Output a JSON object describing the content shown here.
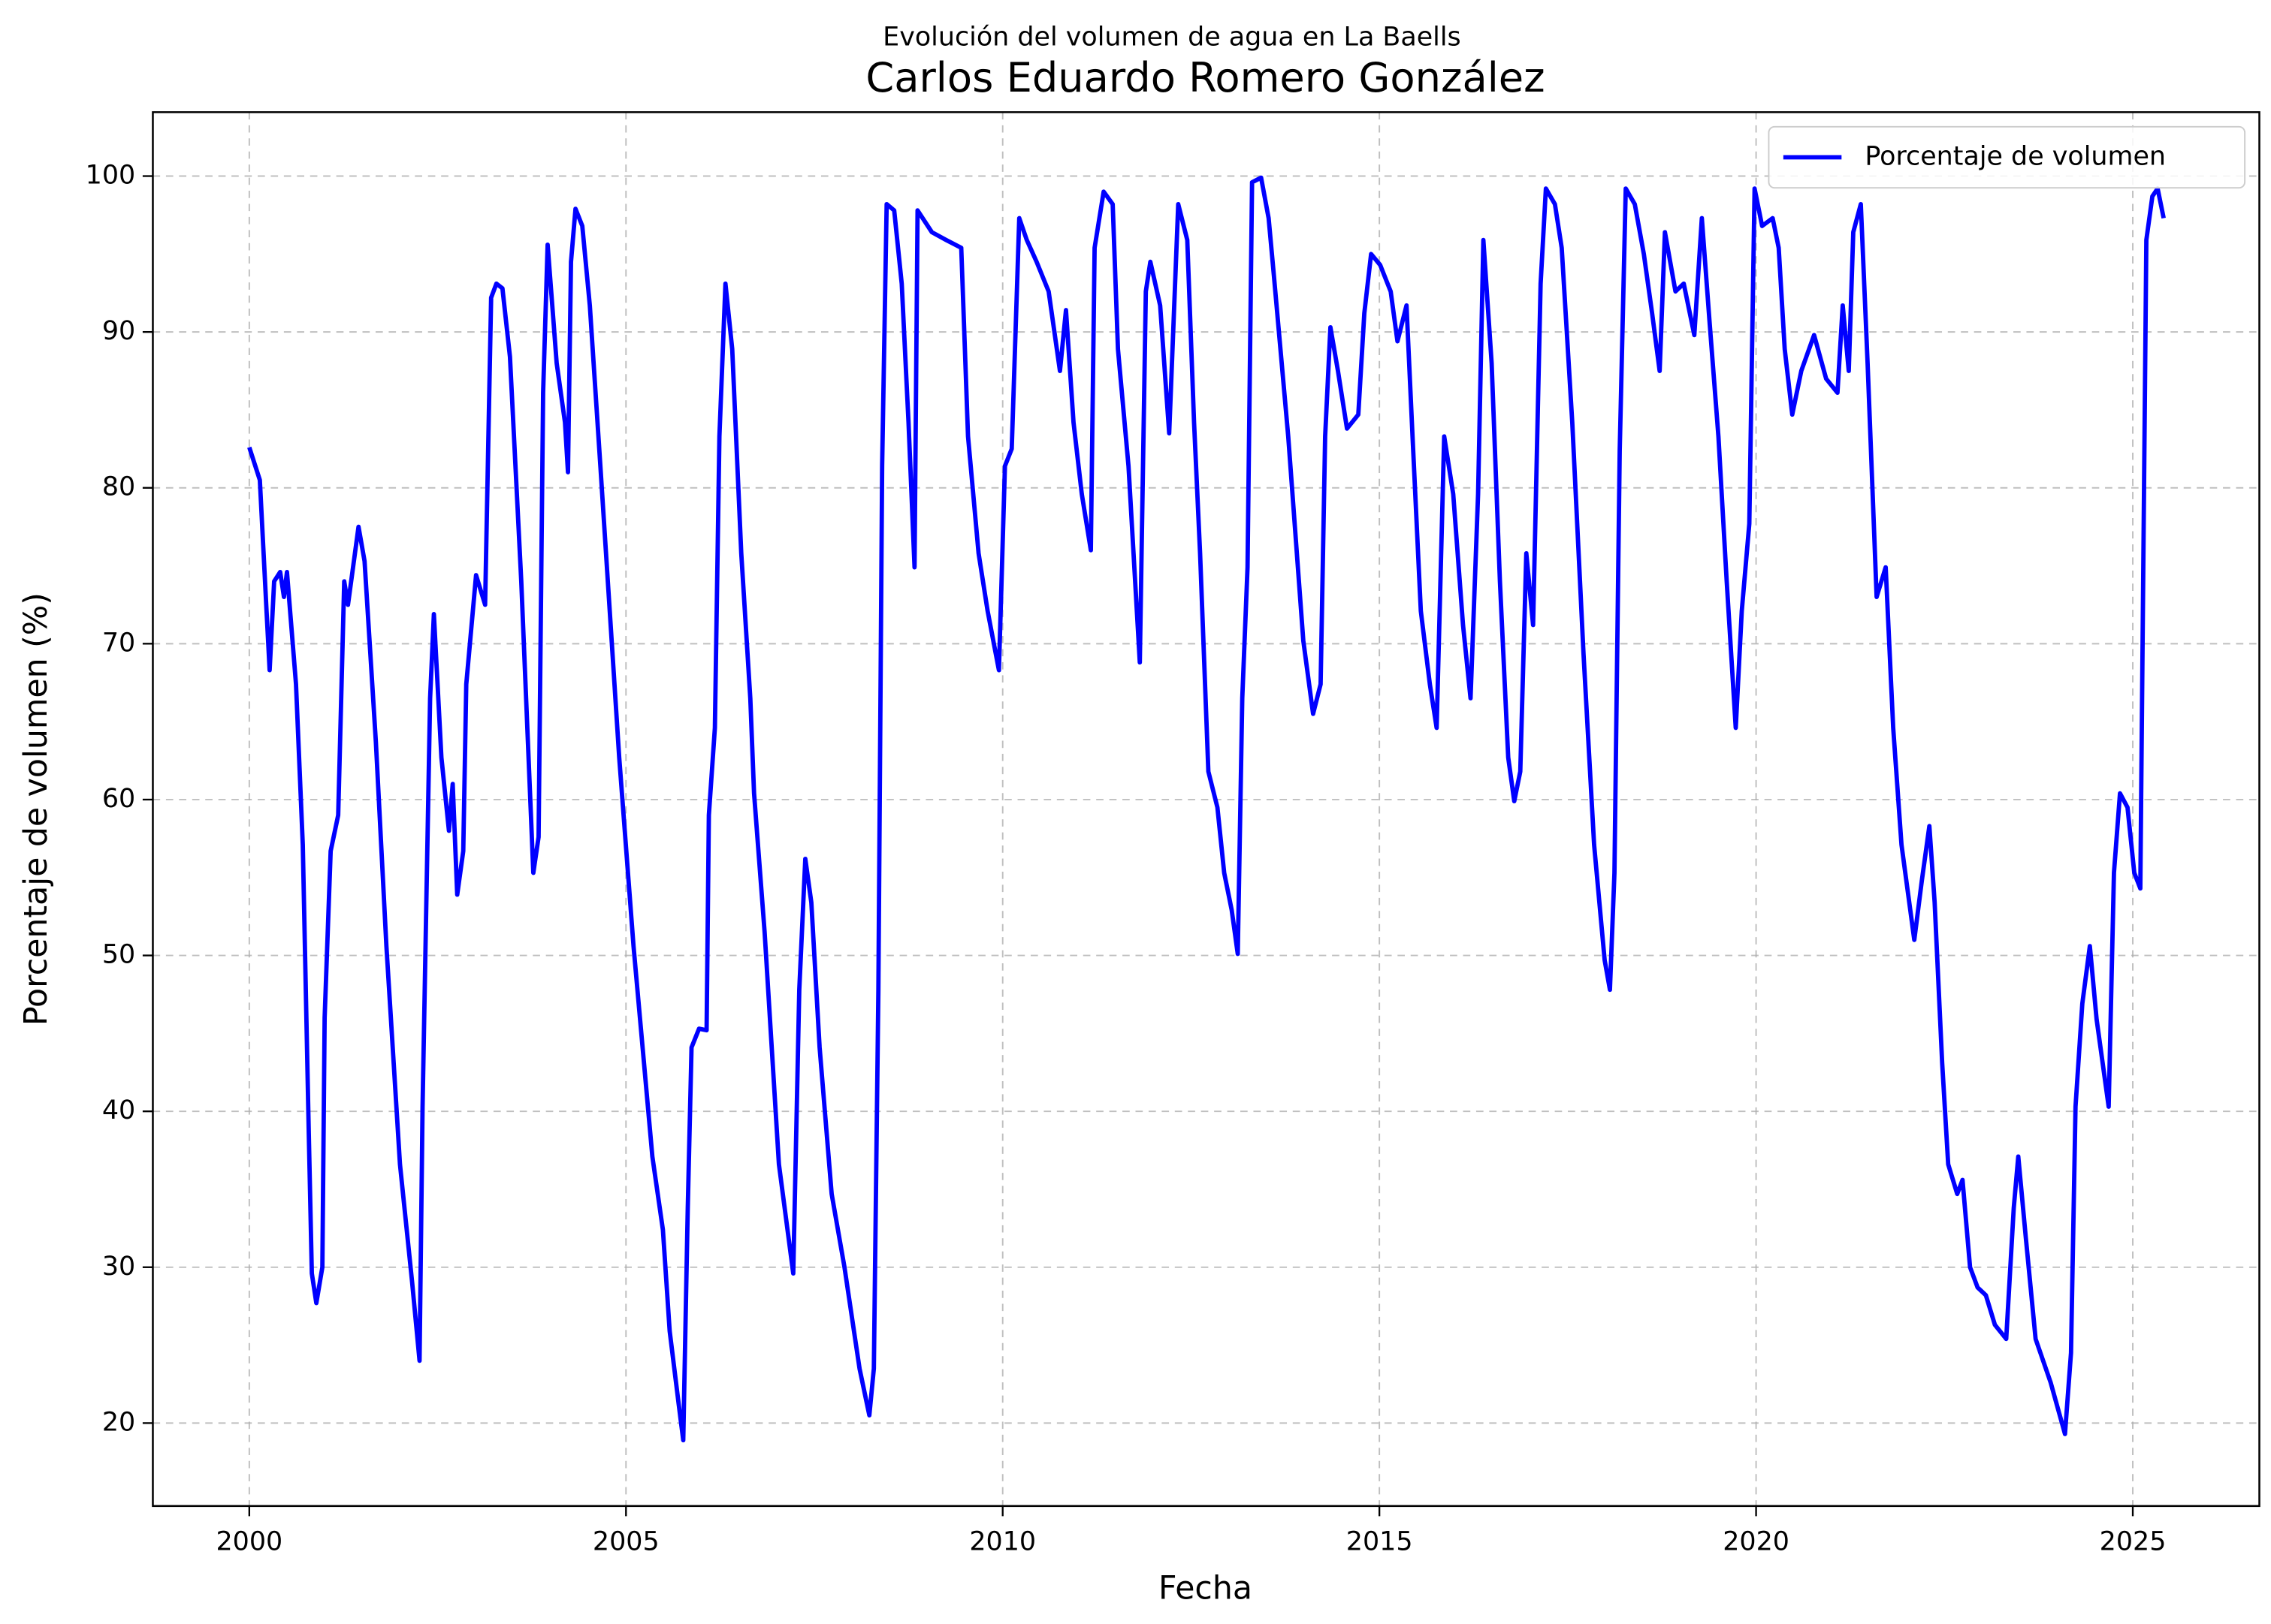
{
  "chart_data": {
    "type": "line",
    "suptitle": "Evolución del volumen de agua en La Baells",
    "title": "Carlos Eduardo Romero González",
    "x_label": "Fecha",
    "y_label": "Porcentaje de volumen (%)",
    "xlim": [
      1998.72,
      2026.68
    ],
    "ylim": [
      14.68,
      104.1
    ],
    "xticks": [
      2000,
      2005,
      2010,
      2015,
      2020,
      2025
    ],
    "yticks": [
      20,
      30,
      40,
      50,
      60,
      70,
      80,
      90,
      100
    ],
    "grid": true,
    "legend": "upper right",
    "x": [
      2000,
      2000.14,
      2000.23,
      2000.27,
      2000.33,
      2000.41,
      2000.46,
      2000.5,
      2000.62,
      2000.71,
      2000.79,
      2000.83,
      2000.89,
      2000.97,
      2001.0,
      2001.08,
      2001.18,
      2001.26,
      2001.31,
      2001.45,
      2001.53,
      2001.68,
      2001.82,
      2002.0,
      2002.16,
      2002.26,
      2002.3,
      2002.4,
      2002.45,
      2002.55,
      2002.65,
      2002.7,
      2002.76,
      2002.84,
      2002.88,
      2003.01,
      2003.13,
      2003.21,
      2003.28,
      2003.36,
      2003.46,
      2003.61,
      2003.77,
      2003.84,
      2003.9,
      2003.96,
      2004.08,
      2004.19,
      2004.23,
      2004.27,
      2004.33,
      2004.42,
      2004.52,
      2004.66,
      2004.91,
      2005.1,
      2005.35,
      2005.49,
      2005.58,
      2005.7,
      2005.76,
      2005.82,
      2005.87,
      2005.97,
      2006.07,
      2006.1,
      2006.18,
      2006.24,
      2006.32,
      2006.41,
      2006.53,
      2006.65,
      2006.7,
      2006.84,
      2007.03,
      2007.22,
      2007.3,
      2007.38,
      2007.46,
      2007.57,
      2007.73,
      2007.9,
      2008.1,
      2008.23,
      2008.29,
      2008.35,
      2008.4,
      2008.46,
      2008.56,
      2008.66,
      2008.75,
      2008.83,
      2008.87,
      2009.06,
      2009.25,
      2009.45,
      2009.54,
      2009.68,
      2009.8,
      2009.95,
      2010.03,
      2010.12,
      2010.22,
      2010.32,
      2010.45,
      2010.61,
      2010.76,
      2010.84,
      2010.94,
      2011.05,
      2011.17,
      2011.22,
      2011.34,
      2011.46,
      2011.53,
      2011.67,
      2011.82,
      2011.9,
      2011.96,
      2012.09,
      2012.21,
      2012.33,
      2012.45,
      2012.54,
      2012.62,
      2012.73,
      2012.85,
      2012.94,
      2013.04,
      2013.12,
      2013.18,
      2013.25,
      2013.31,
      2013.43,
      2013.53,
      2013.6,
      2013.79,
      2013.99,
      2014.12,
      2014.22,
      2014.28,
      2014.35,
      2014.45,
      2014.57,
      2014.72,
      2014.8,
      2014.89,
      2015.01,
      2015.15,
      2015.24,
      2015.36,
      2015.44,
      2015.55,
      2015.67,
      2015.76,
      2015.86,
      2015.98,
      2016.11,
      2016.21,
      2016.31,
      2016.38,
      2016.49,
      2016.6,
      2016.71,
      2016.79,
      2016.87,
      2016.95,
      2017.04,
      2017.14,
      2017.21,
      2017.33,
      2017.42,
      2017.56,
      2017.71,
      2017.85,
      2017.99,
      2018.06,
      2018.12,
      2018.19,
      2018.27,
      2018.39,
      2018.51,
      2018.62,
      2018.72,
      2018.79,
      2018.93,
      2019.04,
      2019.18,
      2019.28,
      2019.38,
      2019.5,
      2019.61,
      2019.73,
      2019.81,
      2019.91,
      2019.98,
      2020.08,
      2020.22,
      2020.3,
      2020.38,
      2020.48,
      2020.6,
      2020.77,
      2020.93,
      2021.08,
      2021.15,
      2021.23,
      2021.29,
      2021.39,
      2021.48,
      2021.6,
      2021.72,
      2021.82,
      2021.93,
      2022.1,
      2022.2,
      2022.3,
      2022.37,
      2022.47,
      2022.55,
      2022.67,
      2022.74,
      2022.84,
      2022.94,
      2023.05,
      2023.17,
      2023.32,
      2023.42,
      2023.48,
      2023.58,
      2023.71,
      2023.91,
      2024.1,
      2024.18,
      2024.24,
      2024.33,
      2024.43,
      2024.52,
      2024.68,
      2024.75,
      2024.83,
      2024.93,
      2025.02,
      2025.1,
      2025.18,
      2025.26,
      2025.33,
      2025.41
    ],
    "series": [
      {
        "name": "Porcentaje de volumen",
        "color": "#0000ff",
        "values": [
          82.6,
          80.5,
          72,
          68.3,
          74,
          74.6,
          73,
          74.6,
          67.4,
          57.1,
          38.5,
          29.6,
          27.7,
          30,
          46,
          56.7,
          59,
          74,
          72.5,
          77.5,
          75.3,
          63.7,
          50.6,
          36.6,
          29.1,
          24,
          40.3,
          66.5,
          71.9,
          62.7,
          58,
          61,
          53.9,
          56.7,
          67.4,
          74.4,
          72.5,
          92.2,
          93.1,
          92.8,
          88.4,
          74,
          55.3,
          57.6,
          86.1,
          95.6,
          88,
          84.2,
          81,
          94.5,
          97.9,
          96.8,
          91.7,
          81.4,
          62.7,
          50.6,
          37.1,
          32.4,
          25.9,
          21.2,
          18.9,
          33.8,
          44.1,
          45.3,
          45.2,
          59,
          64.6,
          83.3,
          93.1,
          88.9,
          75.8,
          66.5,
          60.4,
          51.5,
          36.6,
          29.6,
          47.8,
          56.2,
          53.4,
          44.1,
          34.7,
          30,
          23.5,
          20.5,
          23.5,
          47.8,
          81.4,
          98.2,
          97.8,
          93.1,
          84.2,
          74.9,
          97.8,
          96.4,
          95.9,
          95.4,
          83.3,
          75.8,
          72.1,
          68.3,
          81.4,
          82.5,
          97.3,
          95.9,
          94.5,
          92.6,
          87.5,
          91.4,
          84.2,
          79.6,
          76,
          95.4,
          99,
          98.2,
          88.9,
          81.4,
          68.8,
          92.6,
          94.5,
          91.7,
          83.5,
          98.2,
          95.9,
          84.2,
          75.8,
          61.8,
          59.5,
          55.3,
          52.9,
          50.1,
          66.5,
          74.9,
          99.6,
          99.9,
          97.3,
          93.6,
          83.3,
          70.2,
          65.5,
          67.4,
          83.3,
          90.3,
          87.5,
          83.8,
          84.7,
          91.2,
          95,
          94.3,
          92.6,
          89.4,
          91.7,
          83.3,
          72.1,
          67.4,
          64.6,
          83.3,
          79.6,
          71.2,
          66.5,
          79.6,
          95.9,
          88,
          74,
          62.7,
          59.9,
          61.8,
          75.8,
          71.2,
          93.1,
          99.2,
          98.2,
          95.4,
          84.2,
          69.3,
          57.1,
          49.7,
          47.8,
          55.3,
          82.4,
          99.2,
          98.2,
          95,
          91.2,
          87.5,
          96.4,
          92.6,
          93.1,
          89.8,
          97.3,
          90.8,
          83.3,
          74,
          64.6,
          72.1,
          77.7,
          99.2,
          96.8,
          97.3,
          95.4,
          88.9,
          84.7,
          87.5,
          89.8,
          87,
          86.1,
          91.7,
          87.5,
          96.4,
          98.2,
          88,
          73,
          74.9,
          64.6,
          57.1,
          51,
          54.8,
          58.3,
          53.4,
          43.1,
          36.6,
          34.7,
          35.6,
          30,
          28.7,
          28.2,
          26.3,
          25.4,
          33.8,
          37.1,
          31.9,
          25.4,
          22.6,
          19.3,
          24.5,
          40.3,
          46.9,
          50.6,
          45.9,
          40.3,
          55.3,
          60.4,
          59.5,
          55.3,
          54.3,
          95.9,
          98.7,
          99.2,
          97.3
        ]
      }
    ]
  }
}
